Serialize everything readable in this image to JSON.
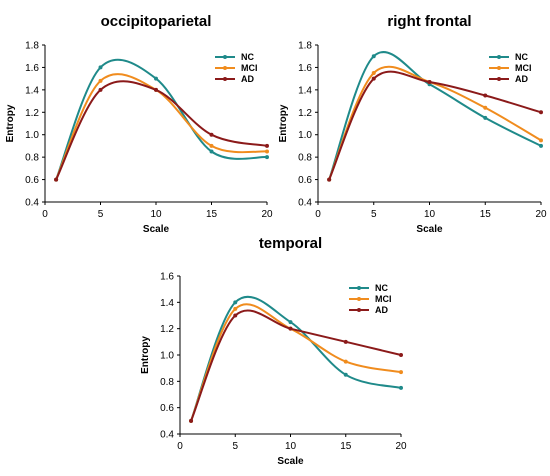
{
  "colors": {
    "NC": "#1f8a8a",
    "MCI": "#f08c1e",
    "AD": "#8b1a1a"
  },
  "chart_data": [
    {
      "type": "line",
      "title": "occipitoparietal",
      "xlabel": "Scale",
      "ylabel": "Entropy",
      "xlim": [
        0,
        20
      ],
      "ylim": [
        0.4,
        1.8
      ],
      "xticks": [
        "0",
        "5",
        "10",
        "15",
        "20"
      ],
      "yticks": [
        "0.4",
        "0.6",
        "0.8",
        "1.0",
        "1.2",
        "1.4",
        "1.6",
        "1.8"
      ],
      "legend": "top-right",
      "x": [
        1,
        5,
        10,
        15,
        20
      ],
      "series": [
        {
          "name": "NC",
          "values": [
            0.6,
            1.6,
            1.5,
            0.85,
            0.8
          ]
        },
        {
          "name": "MCI",
          "values": [
            0.6,
            1.48,
            1.4,
            0.9,
            0.85
          ]
        },
        {
          "name": "AD",
          "values": [
            0.6,
            1.4,
            1.4,
            1.0,
            0.9
          ]
        }
      ]
    },
    {
      "type": "line",
      "title": "right frontal",
      "xlabel": "Scale",
      "ylabel": "Entropy",
      "xlim": [
        0,
        20
      ],
      "ylim": [
        0.4,
        1.8
      ],
      "xticks": [
        "0",
        "5",
        "10",
        "15",
        "20"
      ],
      "yticks": [
        "0.4",
        "0.6",
        "0.8",
        "1.0",
        "1.2",
        "1.4",
        "1.6",
        "1.8"
      ],
      "legend": "top-right",
      "x": [
        1,
        5,
        10,
        15,
        20
      ],
      "series": [
        {
          "name": "NC",
          "values": [
            0.6,
            1.7,
            1.45,
            1.15,
            0.9
          ]
        },
        {
          "name": "MCI",
          "values": [
            0.6,
            1.55,
            1.47,
            1.24,
            0.95
          ]
        },
        {
          "name": "AD",
          "values": [
            0.6,
            1.5,
            1.47,
            1.35,
            1.2
          ]
        }
      ]
    },
    {
      "type": "line",
      "title": "temporal",
      "xlabel": "Scale",
      "ylabel": "Entropy",
      "xlim": [
        0,
        20
      ],
      "ylim": [
        0.4,
        1.6
      ],
      "xticks": [
        "0",
        "5",
        "10",
        "15",
        "20"
      ],
      "yticks": [
        "0.4",
        "0.6",
        "0.8",
        "1.0",
        "1.2",
        "1.4",
        "1.6"
      ],
      "legend": "top-right",
      "x": [
        1,
        5,
        10,
        15,
        20
      ],
      "series": [
        {
          "name": "NC",
          "values": [
            0.5,
            1.4,
            1.25,
            0.85,
            0.75
          ]
        },
        {
          "name": "MCI",
          "values": [
            0.5,
            1.35,
            1.2,
            0.95,
            0.87
          ]
        },
        {
          "name": "AD",
          "values": [
            0.5,
            1.3,
            1.2,
            1.1,
            1.0
          ]
        }
      ]
    }
  ]
}
